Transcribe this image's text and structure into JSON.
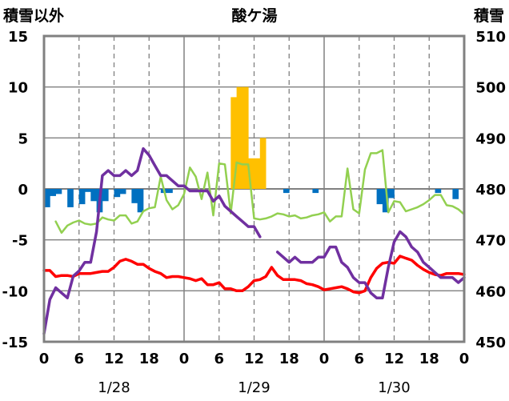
{
  "chart_data": {
    "type": "bar+line",
    "title": "酸ケ湯",
    "left_axis_label": "積雪以外",
    "right_axis_label": "積雪",
    "ylim_left": [
      -15,
      15
    ],
    "ylim_right": [
      450,
      510
    ],
    "yticks_left": [
      "15",
      "10",
      "5",
      "0",
      "-5",
      "-10",
      "-15"
    ],
    "yticks_right": [
      "510",
      "500",
      "490",
      "480",
      "470",
      "460",
      "450"
    ],
    "x_range_hours": [
      0,
      72
    ],
    "xticks": [
      "0",
      "6",
      "12",
      "18",
      "0",
      "6",
      "12",
      "18",
      "0",
      "6",
      "12",
      "18",
      "0"
    ],
    "date_labels": [
      "1/28",
      "1/29",
      "1/30"
    ],
    "colors": {
      "snowfall_bar": "#FFC000",
      "snow_change_bar": "#0070C0",
      "temperature_line": "#FF0000",
      "snow_depth_line": "#7030A0",
      "humidity_line": "#92D050"
    },
    "snowfall_bars": [
      {
        "h": 33,
        "v": 9
      },
      {
        "h": 34,
        "v": 10
      },
      {
        "h": 35,
        "v": 10
      },
      {
        "h": 36,
        "v": 3
      },
      {
        "h": 37,
        "v": 3
      },
      {
        "h": 38,
        "v": 5
      }
    ],
    "snow_change_bars": [
      {
        "h": 1,
        "v": -1.8
      },
      {
        "h": 2,
        "v": -0.7
      },
      {
        "h": 3,
        "v": -0.5
      },
      {
        "h": 5,
        "v": -1.8
      },
      {
        "h": 7,
        "v": -1.5
      },
      {
        "h": 8,
        "v": -0.3
      },
      {
        "h": 9,
        "v": -1.2
      },
      {
        "h": 10,
        "v": -2.3
      },
      {
        "h": 11,
        "v": -1.2
      },
      {
        "h": 13,
        "v": -0.8
      },
      {
        "h": 14,
        "v": -0.5
      },
      {
        "h": 16,
        "v": -1.4
      },
      {
        "h": 17,
        "v": -2.3
      },
      {
        "h": 21,
        "v": -0.4
      },
      {
        "h": 22,
        "v": -0.4
      },
      {
        "h": 42,
        "v": -0.4
      },
      {
        "h": 47,
        "v": -0.4
      },
      {
        "h": 58,
        "v": -1.5
      },
      {
        "h": 59,
        "v": -2.3
      },
      {
        "h": 60,
        "v": -0.9
      },
      {
        "h": 68,
        "v": -0.4
      },
      {
        "h": 71,
        "v": -1.0
      }
    ],
    "temperature": [
      [
        0,
        -8.0
      ],
      [
        1,
        -8.0
      ],
      [
        2,
        -8.6
      ],
      [
        3,
        -8.5
      ],
      [
        4,
        -8.5
      ],
      [
        5,
        -8.6
      ],
      [
        6,
        -8.3
      ],
      [
        7,
        -8.3
      ],
      [
        8,
        -8.3
      ],
      [
        9,
        -8.2
      ],
      [
        10,
        -8.1
      ],
      [
        11,
        -8.1
      ],
      [
        12,
        -7.7
      ],
      [
        13,
        -7.1
      ],
      [
        14,
        -6.9
      ],
      [
        15,
        -7.1
      ],
      [
        16,
        -7.4
      ],
      [
        17,
        -7.4
      ],
      [
        18,
        -7.8
      ],
      [
        19,
        -8.1
      ],
      [
        20,
        -8.3
      ],
      [
        21,
        -8.7
      ],
      [
        22,
        -8.6
      ],
      [
        23,
        -8.6
      ],
      [
        24,
        -8.7
      ],
      [
        25,
        -8.8
      ],
      [
        26,
        -9.0
      ],
      [
        27,
        -8.8
      ],
      [
        28,
        -9.4
      ],
      [
        29,
        -9.4
      ],
      [
        30,
        -9.2
      ],
      [
        31,
        -9.8
      ],
      [
        32,
        -9.8
      ],
      [
        33,
        -10.0
      ],
      [
        34,
        -10.0
      ],
      [
        35,
        -9.6
      ],
      [
        36,
        -9.0
      ],
      [
        37,
        -8.9
      ],
      [
        38,
        -8.6
      ],
      [
        39,
        -7.7
      ],
      [
        40,
        -8.5
      ],
      [
        41,
        -8.9
      ],
      [
        42,
        -8.9
      ],
      [
        43,
        -8.9
      ],
      [
        44,
        -9.0
      ],
      [
        45,
        -9.3
      ],
      [
        46,
        -9.4
      ],
      [
        47,
        -9.6
      ],
      [
        48,
        -9.9
      ],
      [
        49,
        -9.8
      ],
      [
        50,
        -9.7
      ],
      [
        51,
        -9.6
      ],
      [
        52,
        -9.8
      ],
      [
        53,
        -10.1
      ],
      [
        54,
        -10.2
      ],
      [
        55,
        -10.0
      ],
      [
        56,
        -8.7
      ],
      [
        57,
        -7.8
      ],
      [
        58,
        -7.3
      ],
      [
        59,
        -7.2
      ],
      [
        60,
        -7.3
      ],
      [
        61,
        -6.6
      ],
      [
        62,
        -6.8
      ],
      [
        63,
        -7.0
      ],
      [
        64,
        -7.5
      ],
      [
        65,
        -7.9
      ],
      [
        66,
        -8.2
      ],
      [
        67,
        -8.4
      ],
      [
        68,
        -8.5
      ],
      [
        69,
        -8.3
      ],
      [
        70,
        -8.3
      ],
      [
        71,
        -8.3
      ],
      [
        72,
        -8.4
      ]
    ],
    "humidity": [
      [
        2,
        -3.2
      ],
      [
        3,
        -4.3
      ],
      [
        4,
        -3.6
      ],
      [
        5,
        -3.3
      ],
      [
        6,
        -3.1
      ],
      [
        7,
        -3.4
      ],
      [
        8,
        -3.5
      ],
      [
        9,
        -3.4
      ],
      [
        10,
        -2.8
      ],
      [
        11,
        -3.0
      ],
      [
        12,
        -3.1
      ],
      [
        13,
        -2.6
      ],
      [
        14,
        -2.6
      ],
      [
        15,
        -3.4
      ],
      [
        16,
        -3.2
      ],
      [
        17,
        -2.2
      ],
      [
        18,
        -1.9
      ],
      [
        19,
        -1.8
      ],
      [
        20,
        1.2
      ],
      [
        21,
        -1.1
      ],
      [
        22,
        -2.0
      ],
      [
        23,
        -1.6
      ],
      [
        24,
        -0.5
      ],
      [
        25,
        2.1
      ],
      [
        26,
        1.2
      ],
      [
        27,
        -1.0
      ],
      [
        28,
        1.6
      ],
      [
        29,
        -2.6
      ],
      [
        30,
        2.5
      ],
      [
        31,
        2.4
      ],
      [
        32,
        -2.4
      ],
      [
        33,
        2.6
      ],
      [
        34,
        2.4
      ],
      [
        35,
        2.4
      ],
      [
        36,
        -2.9
      ],
      [
        37,
        -3.0
      ],
      [
        38,
        -2.9
      ],
      [
        39,
        -2.7
      ],
      [
        40,
        -2.4
      ],
      [
        41,
        -2.5
      ],
      [
        42,
        -2.7
      ],
      [
        43,
        -2.6
      ],
      [
        44,
        -2.9
      ],
      [
        45,
        -2.8
      ],
      [
        46,
        -2.6
      ],
      [
        47,
        -2.5
      ],
      [
        48,
        -2.3
      ],
      [
        49,
        -3.2
      ],
      [
        50,
        -2.7
      ],
      [
        51,
        -2.7
      ],
      [
        52,
        2.0
      ],
      [
        53,
        -2.0
      ],
      [
        54,
        -2.4
      ],
      [
        55,
        1.9
      ],
      [
        56,
        3.5
      ],
      [
        57,
        3.5
      ],
      [
        58,
        3.8
      ],
      [
        59,
        -2.3
      ],
      [
        60,
        -1.2
      ],
      [
        61,
        -1.3
      ],
      [
        62,
        -2.2
      ],
      [
        63,
        -2.0
      ],
      [
        64,
        -1.8
      ],
      [
        65,
        -1.5
      ],
      [
        66,
        -1.1
      ],
      [
        67,
        -0.6
      ],
      [
        68,
        -0.6
      ],
      [
        69,
        -1.6
      ],
      [
        70,
        -1.7
      ],
      [
        71,
        -2.0
      ],
      [
        72,
        -2.5
      ]
    ],
    "snow_depth_segments": [
      [
        [
          0,
          451.6
        ],
        [
          1,
          458.3
        ],
        [
          2,
          460.6
        ],
        [
          3,
          459.6
        ],
        [
          4,
          458.6
        ],
        [
          5,
          462.9
        ],
        [
          6,
          463.9
        ],
        [
          7,
          465.6
        ],
        [
          8,
          465.6
        ],
        [
          9,
          471.6
        ],
        [
          10,
          482.6
        ],
        [
          11,
          483.6
        ],
        [
          12,
          482.6
        ],
        [
          13,
          482.6
        ],
        [
          14,
          483.6
        ],
        [
          15,
          482.6
        ],
        [
          16,
          483.6
        ],
        [
          17,
          487.9
        ],
        [
          18,
          486.6
        ],
        [
          19,
          484.6
        ],
        [
          20,
          482.6
        ],
        [
          21,
          482.6
        ],
        [
          22,
          481.6
        ],
        [
          23,
          480.6
        ],
        [
          24,
          480.6
        ],
        [
          25,
          479.6
        ],
        [
          26,
          479.6
        ],
        [
          27,
          479.6
        ],
        [
          28,
          479.6
        ],
        [
          29,
          477.6
        ],
        [
          30,
          478.6
        ],
        [
          31,
          476.6
        ],
        [
          32,
          475.6
        ],
        [
          33,
          474.6
        ],
        [
          34,
          473.6
        ],
        [
          35,
          472.6
        ],
        [
          36,
          472.6
        ],
        [
          37,
          470.6
        ]
      ],
      [
        [
          40,
          467.6
        ],
        [
          41,
          466.6
        ],
        [
          42,
          465.6
        ],
        [
          43,
          466.6
        ],
        [
          44,
          465.6
        ],
        [
          45,
          465.6
        ],
        [
          46,
          465.6
        ],
        [
          47,
          466.6
        ],
        [
          48,
          466.6
        ],
        [
          49,
          468.6
        ],
        [
          50,
          468.6
        ],
        [
          51,
          465.6
        ],
        [
          52,
          464.6
        ],
        [
          53,
          462.6
        ],
        [
          54,
          461.6
        ],
        [
          55,
          461.6
        ],
        [
          56,
          459.6
        ],
        [
          57,
          458.6
        ],
        [
          58,
          458.6
        ],
        [
          59,
          464.6
        ],
        [
          60,
          469.6
        ],
        [
          61,
          471.6
        ],
        [
          62,
          470.6
        ],
        [
          63,
          468.6
        ],
        [
          64,
          467.6
        ],
        [
          65,
          465.6
        ],
        [
          66,
          464.6
        ],
        [
          67,
          463.6
        ],
        [
          68,
          462.6
        ],
        [
          69,
          462.6
        ],
        [
          70,
          462.6
        ],
        [
          71,
          461.6
        ],
        [
          72,
          462.6
        ]
      ]
    ]
  }
}
